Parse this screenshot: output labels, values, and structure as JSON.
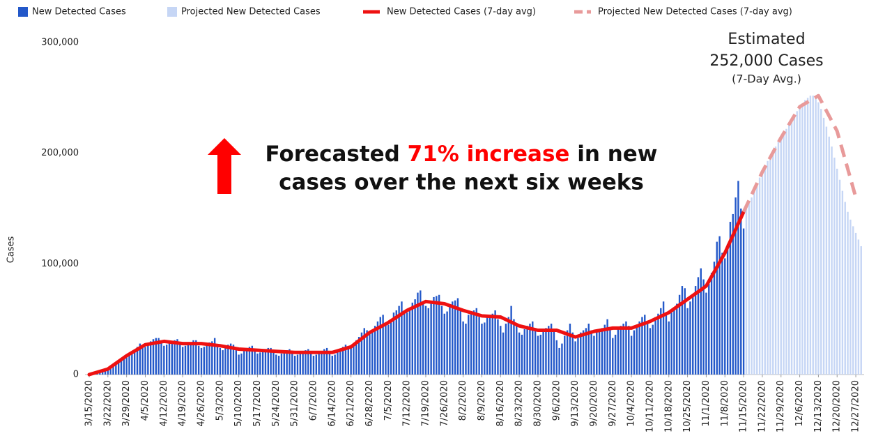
{
  "chart_data": {
    "type": "bar",
    "y_label": "Cases",
    "ylim": [
      0,
      300000
    ],
    "yticks": [
      {
        "value": 0,
        "label": "0"
      },
      {
        "value": 100000,
        "label": "100,000"
      },
      {
        "value": 200000,
        "label": "200,000"
      },
      {
        "value": 300000,
        "label": "300,000"
      }
    ],
    "grid": false,
    "legend": "top",
    "categories": [
      "3/15/2020",
      null,
      null,
      null,
      null,
      null,
      null,
      "3/22/2020",
      null,
      null,
      null,
      null,
      null,
      null,
      "3/29/2020",
      null,
      null,
      null,
      null,
      null,
      null,
      "4/5/2020",
      null,
      null,
      null,
      null,
      null,
      null,
      "4/12/2020",
      null,
      null,
      null,
      null,
      null,
      null,
      "4/19/2020",
      null,
      null,
      null,
      null,
      null,
      null,
      "4/26/2020",
      null,
      null,
      null,
      null,
      null,
      null,
      "5/3/2020",
      null,
      null,
      null,
      null,
      null,
      null,
      "5/10/2020",
      null,
      null,
      null,
      null,
      null,
      null,
      "5/17/2020",
      null,
      null,
      null,
      null,
      null,
      null,
      "5/24/2020",
      null,
      null,
      null,
      null,
      null,
      null,
      "5/31/2020",
      null,
      null,
      null,
      null,
      null,
      null,
      "6/7/2020",
      null,
      null,
      null,
      null,
      null,
      null,
      "6/14/2020",
      null,
      null,
      null,
      null,
      null,
      null,
      "6/21/2020",
      null,
      null,
      null,
      null,
      null,
      null,
      "6/28/2020",
      null,
      null,
      null,
      null,
      null,
      null,
      "7/5/2020",
      null,
      null,
      null,
      null,
      null,
      null,
      "7/12/2020",
      null,
      null,
      null,
      null,
      null,
      null,
      "7/19/2020",
      null,
      null,
      null,
      null,
      null,
      null,
      "7/26/2020",
      null,
      null,
      null,
      null,
      null,
      null,
      "8/2/2020",
      null,
      null,
      null,
      null,
      null,
      null,
      "8/9/2020",
      null,
      null,
      null,
      null,
      null,
      null,
      "8/16/2020",
      null,
      null,
      null,
      null,
      null,
      null,
      "8/23/2020",
      null,
      null,
      null,
      null,
      null,
      null,
      "8/30/2020",
      null,
      null,
      null,
      null,
      null,
      null,
      "9/6/2020",
      null,
      null,
      null,
      null,
      null,
      null,
      "9/13/2020",
      null,
      null,
      null,
      null,
      null,
      null,
      "9/20/2020",
      null,
      null,
      null,
      null,
      null,
      null,
      "9/27/2020",
      null,
      null,
      null,
      null,
      null,
      null,
      "10/4/2020",
      null,
      null,
      null,
      null,
      null,
      null,
      "10/11/2020",
      null,
      null,
      null,
      null,
      null,
      null,
      "10/18/2020",
      null,
      null,
      null,
      null,
      null,
      null,
      "10/25/2020",
      null,
      null,
      null,
      null,
      null,
      null,
      "11/1/2020",
      null,
      null,
      null,
      null,
      null,
      null,
      "11/8/2020",
      null,
      null,
      null,
      null,
      null,
      null,
      "11/15/2020",
      null,
      null,
      null,
      null,
      null,
      null,
      "11/22/2020",
      null,
      null,
      null,
      null,
      null,
      null,
      "11/29/2020",
      null,
      null,
      null,
      null,
      null,
      null,
      "12/6/2020",
      null,
      null,
      null,
      null,
      null,
      null,
      "12/13/2020",
      null,
      null,
      null,
      null,
      null,
      null,
      "12/20/2020",
      null,
      null,
      null,
      null,
      null,
      null,
      "12/27/2020",
      null,
      null
    ],
    "series": [
      {
        "name": "New Detected Cases",
        "type": "bar",
        "color": "#2358c9",
        "values": [
          300,
          800,
          1200,
          2000,
          3000,
          4200,
          4500,
          5000,
          6000,
          8500,
          10000,
          12500,
          15000,
          14000,
          16000,
          17000,
          19000,
          22000,
          25000,
          28000,
          24000,
          25000,
          28000,
          30000,
          32000,
          33000,
          33000,
          29000,
          26000,
          27000,
          29000,
          30000,
          31000,
          32000,
          27000,
          25000,
          26000,
          28000,
          29000,
          31000,
          31000,
          26000,
          24000,
          25000,
          28000,
          29000,
          30000,
          33000,
          25000,
          24000,
          22000,
          24000,
          27000,
          28000,
          27000,
          22000,
          18000,
          19000,
          22000,
          24000,
          25000,
          26000,
          21000,
          19000,
          20000,
          21000,
          23000,
          24000,
          24000,
          20000,
          18000,
          17000,
          19000,
          21000,
          22000,
          23000,
          20000,
          17000,
          18000,
          20000,
          21000,
          22000,
          23000,
          19000,
          17000,
          18000,
          20000,
          21000,
          23000,
          24000,
          19000,
          17000,
          18000,
          21000,
          23000,
          25000,
          27000,
          24000,
          26000,
          27000,
          31000,
          34000,
          38000,
          42000,
          40000,
          38000,
          39000,
          44000,
          48000,
          52000,
          54000,
          46000,
          45000,
          47000,
          56000,
          58000,
          62000,
          66000,
          58000,
          56000,
          58000,
          65000,
          68000,
          74000,
          76000,
          64000,
          62000,
          60000,
          64000,
          70000,
          71000,
          72000,
          62000,
          55000,
          57000,
          62000,
          66000,
          67000,
          69000,
          58000,
          48000,
          46000,
          54000,
          57000,
          58000,
          60000,
          52000,
          46000,
          47000,
          53000,
          54000,
          55000,
          58000,
          50000,
          44000,
          38000,
          46000,
          52000,
          62000,
          50000,
          45000,
          38000,
          36000,
          41000,
          44000,
          46000,
          48000,
          42000,
          35000,
          36000,
          40000,
          42000,
          44000,
          46000,
          40000,
          31000,
          24000,
          28000,
          35000,
          40000,
          46000,
          38000,
          30000,
          33000,
          38000,
          40000,
          42000,
          46000,
          40000,
          35000,
          38000,
          40000,
          42000,
          45000,
          50000,
          43000,
          33000,
          36000,
          41000,
          44000,
          46000,
          48000,
          44000,
          35000,
          40000,
          44000,
          48000,
          52000,
          54000,
          48000,
          42000,
          45000,
          52000,
          55000,
          60000,
          66000,
          56000,
          48000,
          56000,
          60000,
          64000,
          72000,
          80000,
          78000,
          60000,
          66000,
          72000,
          80000,
          88000,
          96000,
          86000,
          74000,
          82000,
          92000,
          102000,
          120000,
          125000,
          110000,
          105000,
          118000,
          138000,
          145000,
          160000,
          175000,
          150000,
          132000,
          null,
          null,
          null,
          null,
          null,
          null,
          null,
          null,
          null,
          null,
          null,
          null,
          null,
          null,
          null,
          null,
          null,
          null,
          null,
          null,
          null,
          null,
          null,
          null,
          null,
          null,
          null,
          null,
          null,
          null,
          null,
          null,
          null,
          null,
          null,
          null,
          null,
          null,
          null,
          null,
          null,
          null,
          null,
          null
        ]
      },
      {
        "name": "Projected New Detected Cases",
        "type": "bar",
        "color": "#c6d6f5",
        "values": [
          null,
          null,
          null,
          null,
          null,
          null,
          null,
          null,
          null,
          null,
          null,
          null,
          null,
          null,
          null,
          null,
          null,
          null,
          null,
          null,
          null,
          null,
          null,
          null,
          null,
          null,
          null,
          null,
          null,
          null,
          null,
          null,
          null,
          null,
          null,
          null,
          null,
          null,
          null,
          null,
          null,
          null,
          null,
          null,
          null,
          null,
          null,
          null,
          null,
          null,
          null,
          null,
          null,
          null,
          null,
          null,
          null,
          null,
          null,
          null,
          null,
          null,
          null,
          null,
          null,
          null,
          null,
          null,
          null,
          null,
          null,
          null,
          null,
          null,
          null,
          null,
          null,
          null,
          null,
          null,
          null,
          null,
          null,
          null,
          null,
          null,
          null,
          null,
          null,
          null,
          null,
          null,
          null,
          null,
          null,
          null,
          null,
          null,
          null,
          null,
          null,
          null,
          null,
          null,
          null,
          null,
          null,
          null,
          null,
          null,
          null,
          null,
          null,
          null,
          null,
          null,
          null,
          null,
          null,
          null,
          null,
          null,
          null,
          null,
          null,
          null,
          null,
          null,
          null,
          null,
          null,
          null,
          null,
          null,
          null,
          null,
          null,
          null,
          null,
          null,
          null,
          null,
          null,
          null,
          null,
          null,
          null,
          null,
          null,
          null,
          null,
          null,
          null,
          null,
          null,
          null,
          null,
          null,
          null,
          null,
          null,
          null,
          null,
          null,
          null,
          null,
          null,
          null,
          null,
          null,
          null,
          null,
          null,
          null,
          null,
          null,
          null,
          null,
          null,
          null,
          null,
          null,
          null,
          null,
          null,
          null,
          null,
          null,
          null,
          null,
          null,
          null,
          null,
          null,
          null,
          null,
          null,
          null,
          null,
          null,
          null,
          null,
          null,
          null,
          null,
          null,
          null,
          null,
          null,
          null,
          null,
          null,
          null,
          null,
          null,
          null,
          null,
          null,
          null,
          null,
          null,
          null,
          null,
          null,
          null,
          null,
          null,
          null,
          null,
          null,
          null,
          null,
          null,
          null,
          null,
          null,
          null,
          null,
          null,
          null,
          null,
          null,
          null,
          null,
          null,
          null,
          150000,
          155000,
          160000,
          166000,
          172000,
          178000,
          183000,
          188000,
          193000,
          198000,
          202000,
          206000,
          210000,
          214000,
          218000,
          222000,
          226000,
          230000,
          234000,
          238000,
          242000,
          245000,
          248000,
          250000,
          252000,
          252000,
          250000,
          246000,
          240000,
          232000,
          224000,
          215000,
          206000,
          196000,
          186000,
          176000,
          166000,
          156000,
          147000,
          140000,
          134000,
          128000,
          122000,
          116000
        ]
      },
      {
        "name": "New Detected Cases (7-day avg)",
        "type": "line",
        "color": "#ee1111",
        "dashed": false,
        "x": [
          "3/15/2020",
          "3/22/2020",
          "3/29/2020",
          "4/5/2020",
          "4/12/2020",
          "4/19/2020",
          "4/26/2020",
          "5/3/2020",
          "5/10/2020",
          "5/17/2020",
          "5/24/2020",
          "5/31/2020",
          "6/7/2020",
          "6/14/2020",
          "6/21/2020",
          "6/28/2020",
          "7/5/2020",
          "7/12/2020",
          "7/19/2020",
          "7/26/2020",
          "8/2/2020",
          "8/9/2020",
          "8/16/2020",
          "8/23/2020",
          "8/30/2020",
          "9/6/2020",
          "9/13/2020",
          "9/20/2020",
          "9/27/2020",
          "10/4/2020",
          "10/11/2020",
          "10/18/2020",
          "10/25/2020",
          "11/1/2020",
          "11/8/2020",
          "11/15/2020"
        ],
        "values": [
          0,
          5000,
          17000,
          27000,
          30000,
          28000,
          28000,
          26000,
          23000,
          22000,
          21000,
          20000,
          20000,
          20000,
          25000,
          38000,
          47000,
          58000,
          66000,
          64000,
          58000,
          53000,
          52000,
          44000,
          40000,
          40000,
          34000,
          39000,
          42000,
          42000,
          48000,
          56000,
          68000,
          80000,
          110000,
          147000
        ]
      },
      {
        "name": "Projected New Detected Cases (7-day avg)",
        "type": "line",
        "color": "#e89a9a",
        "dashed": true,
        "x": [
          "11/15/2020",
          "11/22/2020",
          "11/29/2020",
          "12/6/2020",
          "12/13/2020",
          "12/20/2020",
          "12/27/2020"
        ],
        "values": [
          147000,
          183000,
          214000,
          242000,
          252000,
          220000,
          160000
        ]
      }
    ],
    "annotations": {
      "estimate": [
        "Estimated",
        "252,000 Cases",
        "(7-Day Avg.)"
      ],
      "forecast": {
        "line1_start": "Forecasted ",
        "highlight": "71% increase",
        "line1_end": " in new",
        "line2": "cases over the next six weeks"
      }
    }
  }
}
